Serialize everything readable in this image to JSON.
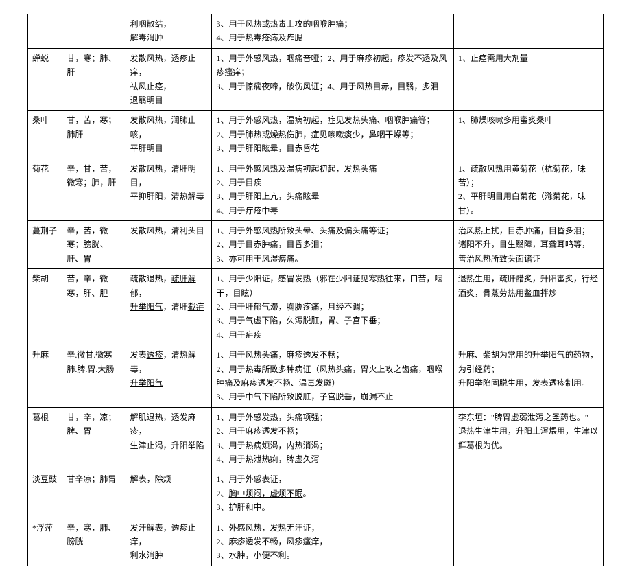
{
  "rows": [
    {
      "name": "",
      "nature": "",
      "function_lines": [
        "利咽散结，",
        "解毒消肿"
      ],
      "application_lines": [
        "3、用于风热或热毒上攻的咽喉肿痛；",
        "4、用于热毒疮疡及痄腮"
      ],
      "remarks_lines": []
    },
    {
      "name": "蝉蜕",
      "nature": "甘，寒；肺、肝",
      "function_lines": [
        "发散风热，透疹止痒，",
        "祛风止痉，",
        "退翳明目"
      ],
      "application_lines": [
        "1、用于外感风热，咽痛音哑；2、用于麻疹初起，疹发不透及风疹瘙痒；",
        "3、用于惊痫夜啼，破伤风证；4、用于风热目赤，目翳，多泪"
      ],
      "remarks_lines": [
        "1、止痉需用大剂量"
      ]
    },
    {
      "name": "桑叶",
      "nature": "甘，苦，寒；肺肝",
      "function_lines": [
        "发散风热，润肺止咳，",
        "平肝明目"
      ],
      "application_lines": [
        "1、用于外感风热，温病初起，症见发热头痛、咽喉肿痛等；",
        "2、用于肺热或燥热伤肺，症见咳嗽痰少，鼻咽干燥等；",
        "3、用于<span class=\"u\">肝阳眩晕，目赤昏花</span>"
      ],
      "remarks_lines": [
        "1、肺燥咳嗽多用蜜炙桑叶"
      ]
    },
    {
      "name": "菊花",
      "nature": "辛，甘，苦，微寒；肺，肝",
      "function_lines": [
        "发散风热，清肝明目，",
        "平抑肝阳，清热解毒"
      ],
      "application_lines": [
        "1、用于外感风热及温病初起初起，发热头痛",
        "2、用于目疾",
        "3、用于肝阳上亢，头痛眩晕",
        "4、用于疔疮中毒"
      ],
      "remarks_lines": [
        "1、疏散风热用黄菊花（杭菊花，味苦）；",
        "2、平肝明目用白菊花（滁菊花，味甘）。"
      ]
    },
    {
      "name": "蔓荆子",
      "nature": "辛，苦，微寒；膀胱、肝、胃",
      "function_lines": [
        "发散风热，清利头目"
      ],
      "application_lines": [
        "1、用于外感风热所致头晕、头痛及偏头痛等证；",
        "2、用于目赤肿痛，目昏多泪；",
        "3、亦可用于风湿痹痛。"
      ],
      "remarks_lines": [
        "治风热上扰，目赤肿痛，目昏多泪；",
        "诸阳不升，目生翳障，耳聋耳鸣等，",
        "善治风热所致头面诸证"
      ]
    },
    {
      "name": "柴胡",
      "nature": "苦，辛，微寒，肝、胆",
      "function_lines": [
        "疏散退热，<span class=\"u\">疏肝解郁</span>，",
        "<span class=\"u\">升举阳气</span>，清肝<span class=\"u\">截疟</span>"
      ],
      "application_lines": [
        "1、用于少阳证，感冒发热（邪在少阳证见寒热往来，口苦，咽干，目眩）",
        "2、用于肝郁气滞，胸胁疼痛，月经不调；",
        "3、用于气虚下陷，久泻脱肛，胃、子宫下垂；",
        "4、用于疟疾"
      ],
      "remarks_lines": [
        "退热生用，疏肝醋炙，升阳蜜炙，行经酒炙，骨蒸劳热用鳖血拌炒"
      ]
    },
    {
      "name": "升麻",
      "nature": "辛.微甘.微寒肺.脾.胃.大肠",
      "function_lines": [
        "发表<span class=\"u\">透疹</span>，清热解毒，",
        "<span class=\"u\">升举阳气</span>"
      ],
      "application_lines": [
        "1、用于风热头痛，麻疹透发不畅；",
        "2、用于热毒所致多种病证（风热头痛，胃火上攻之齿痛，咽喉肿痛及麻疹透发不畅、温毒发斑）",
        "3、用于中气下陷所致脱肛，子宫脱垂，崩漏不止"
      ],
      "remarks_lines": [
        "升麻、柴胡为常用的升举阳气的药物，为引经药；",
        "升阳举陷固脱生用，发表透疹制用。"
      ]
    },
    {
      "name": "葛根",
      "nature": "甘，辛，凉；脾、胃",
      "function_lines": [
        "解肌退热，透发麻疹，",
        "生津止渴，升阳举陷"
      ],
      "application_lines": [
        "1、用于<span class=\"u\">外感发热，头痛项强</span>；",
        "2、用于麻疹透发不畅；",
        "3、用于热病烦渴，内热消渴；",
        "4、用于<span class=\"u\">热泄热痢，脾虚久泻</span>"
      ],
      "remarks_lines": [
        "李东垣：\"<span class=\"u\">脾胃虚弱泄泻之圣药也</span>。\"",
        "退热生津生用，升阳止泻煨用，生津以鲜葛根为优。"
      ]
    },
    {
      "name": "淡豆豉",
      "nature": "甘辛凉；肺胃",
      "function_lines": [
        "解表，<span class=\"u\">除烦</span>"
      ],
      "application_lines": [
        "1、用于外感表证，",
        "2、<span class=\"u\">胸中烦闷，虚烦不眠</span>。",
        "3、护肝和中。"
      ],
      "remarks_lines": []
    },
    {
      "name": "*浮萍",
      "nature": "辛，寒，肺、膀胱",
      "function_lines": [
        "发汗解表，透疹止痒，",
        "利水消肿"
      ],
      "application_lines": [
        "1、外感风热，发热无汗证，",
        "2、麻疹透发不畅，风疹瘙痒，",
        "3、水肿，小便不利。"
      ],
      "remarks_lines": []
    }
  ]
}
